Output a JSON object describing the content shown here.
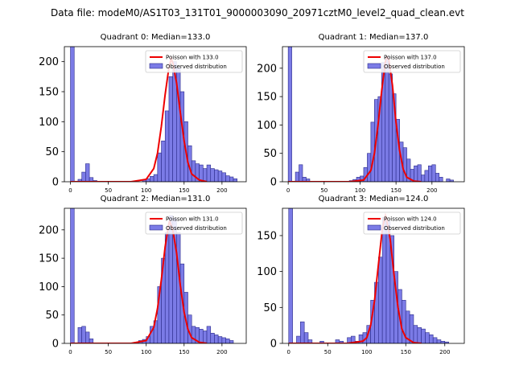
{
  "figure_title": "Data file: modeM0/AS1T03_131T01_9000003090_20971cztM0_level2_quad_clean.evt",
  "colors": {
    "bar_fill": "#7b7be6",
    "bar_edge": "#2b2b8a",
    "poisson_line": "#ee0000",
    "axis": "#000000"
  },
  "chart_data": [
    {
      "type": "bar",
      "title": "Quadrant 0: Median=133.0",
      "median": 133.0,
      "xlim": [
        -8,
        232
      ],
      "ylim": [
        0,
        225
      ],
      "xticks": [
        0,
        50,
        100,
        150,
        200
      ],
      "yticks": [
        0,
        50,
        100,
        150,
        200
      ],
      "xlabel": "",
      "ylabel": "",
      "legend": {
        "placement": "top-right",
        "entries": [
          "Poisson with 133.0",
          "Observed distribution"
        ]
      },
      "bin_width": 5,
      "bins": [
        [
          0,
          225
        ],
        [
          10,
          4
        ],
        [
          15,
          16
        ],
        [
          20,
          30
        ],
        [
          25,
          7
        ],
        [
          30,
          2
        ],
        [
          95,
          3
        ],
        [
          100,
          5
        ],
        [
          105,
          9
        ],
        [
          110,
          12
        ],
        [
          115,
          48
        ],
        [
          120,
          68
        ],
        [
          125,
          118
        ],
        [
          130,
          175
        ],
        [
          135,
          200
        ],
        [
          140,
          190
        ],
        [
          145,
          150
        ],
        [
          150,
          100
        ],
        [
          155,
          60
        ],
        [
          160,
          35
        ],
        [
          165,
          30
        ],
        [
          170,
          28
        ],
        [
          175,
          22
        ],
        [
          180,
          28
        ],
        [
          185,
          22
        ],
        [
          190,
          20
        ],
        [
          195,
          18
        ],
        [
          200,
          15
        ],
        [
          205,
          10
        ],
        [
          210,
          8
        ],
        [
          215,
          5
        ]
      ],
      "poisson_curve": [
        [
          0,
          0
        ],
        [
          80,
          0
        ],
        [
          100,
          4
        ],
        [
          110,
          22
        ],
        [
          115,
          48
        ],
        [
          120,
          92
        ],
        [
          125,
          145
        ],
        [
          130,
          190
        ],
        [
          133,
          205
        ],
        [
          135,
          198
        ],
        [
          140,
          165
        ],
        [
          145,
          115
        ],
        [
          150,
          68
        ],
        [
          155,
          32
        ],
        [
          160,
          13
        ],
        [
          170,
          3
        ],
        [
          180,
          0
        ]
      ]
    },
    {
      "type": "bar",
      "title": "Quadrant 1: Median=137.0",
      "median": 137.0,
      "xlim": [
        -8,
        245
      ],
      "ylim": [
        0,
        238
      ],
      "xticks": [
        0,
        50,
        100,
        150,
        200
      ],
      "yticks": [
        0,
        50,
        100,
        150,
        200
      ],
      "xlabel": "",
      "ylabel": "",
      "legend": {
        "placement": "top-right",
        "entries": [
          "Poisson with 137.0",
          "Observed distribution"
        ]
      },
      "bin_width": 5,
      "bins": [
        [
          0,
          238
        ],
        [
          10,
          17
        ],
        [
          15,
          30
        ],
        [
          20,
          8
        ],
        [
          25,
          5
        ],
        [
          85,
          2
        ],
        [
          90,
          4
        ],
        [
          95,
          8
        ],
        [
          100,
          10
        ],
        [
          105,
          25
        ],
        [
          110,
          50
        ],
        [
          115,
          105
        ],
        [
          120,
          145
        ],
        [
          125,
          150
        ],
        [
          130,
          210
        ],
        [
          135,
          220
        ],
        [
          140,
          190
        ],
        [
          145,
          155
        ],
        [
          150,
          110
        ],
        [
          155,
          70
        ],
        [
          160,
          60
        ],
        [
          165,
          40
        ],
        [
          170,
          22
        ],
        [
          175,
          28
        ],
        [
          180,
          30
        ],
        [
          185,
          12
        ],
        [
          190,
          20
        ],
        [
          195,
          28
        ],
        [
          200,
          30
        ],
        [
          205,
          15
        ],
        [
          210,
          8
        ],
        [
          220,
          5
        ],
        [
          225,
          3
        ]
      ],
      "poisson_curve": [
        [
          0,
          0
        ],
        [
          85,
          0
        ],
        [
          105,
          3
        ],
        [
          115,
          20
        ],
        [
          120,
          50
        ],
        [
          125,
          100
        ],
        [
          130,
          160
        ],
        [
          135,
          210
        ],
        [
          137,
          220
        ],
        [
          140,
          215
        ],
        [
          145,
          170
        ],
        [
          150,
          105
        ],
        [
          155,
          55
        ],
        [
          160,
          22
        ],
        [
          165,
          8
        ],
        [
          175,
          1
        ],
        [
          185,
          0
        ]
      ]
    },
    {
      "type": "bar",
      "title": "Quadrant 2: Median=131.0",
      "median": 131.0,
      "xlim": [
        -8,
        232
      ],
      "ylim": [
        0,
        238
      ],
      "xticks": [
        0,
        50,
        100,
        150,
        200
      ],
      "yticks": [
        0,
        50,
        100,
        150,
        200
      ],
      "xlabel": "",
      "ylabel": "",
      "legend": {
        "placement": "top-right",
        "entries": [
          "Poisson with 131.0",
          "Observed distribution"
        ]
      },
      "bin_width": 5,
      "bins": [
        [
          0,
          238
        ],
        [
          10,
          28
        ],
        [
          15,
          30
        ],
        [
          20,
          20
        ],
        [
          25,
          8
        ],
        [
          85,
          2
        ],
        [
          90,
          5
        ],
        [
          95,
          7
        ],
        [
          100,
          12
        ],
        [
          105,
          30
        ],
        [
          110,
          40
        ],
        [
          115,
          100
        ],
        [
          120,
          150
        ],
        [
          125,
          195
        ],
        [
          130,
          225
        ],
        [
          135,
          220
        ],
        [
          140,
          195
        ],
        [
          145,
          140
        ],
        [
          150,
          90
        ],
        [
          155,
          50
        ],
        [
          160,
          30
        ],
        [
          165,
          28
        ],
        [
          170,
          25
        ],
        [
          175,
          22
        ],
        [
          180,
          30
        ],
        [
          185,
          18
        ],
        [
          190,
          15
        ],
        [
          195,
          12
        ],
        [
          200,
          10
        ],
        [
          205,
          8
        ],
        [
          210,
          5
        ]
      ],
      "poisson_curve": [
        [
          0,
          0
        ],
        [
          80,
          0
        ],
        [
          100,
          5
        ],
        [
          110,
          28
        ],
        [
          115,
          62
        ],
        [
          120,
          112
        ],
        [
          125,
          170
        ],
        [
          130,
          212
        ],
        [
          131,
          215
        ],
        [
          135,
          200
        ],
        [
          140,
          160
        ],
        [
          145,
          102
        ],
        [
          150,
          55
        ],
        [
          155,
          25
        ],
        [
          160,
          10
        ],
        [
          170,
          2
        ],
        [
          180,
          0
        ]
      ]
    },
    {
      "type": "bar",
      "title": "Quadrant 3: Median=124.0",
      "median": 124.0,
      "xlim": [
        -8,
        225
      ],
      "ylim": [
        0,
        188
      ],
      "xticks": [
        0,
        50,
        100,
        150,
        200
      ],
      "yticks": [
        0,
        50,
        100,
        150
      ],
      "xlabel": "",
      "ylabel": "",
      "legend": {
        "placement": "top-right",
        "entries": [
          "Poisson with 124.0",
          "Observed distribution"
        ]
      },
      "bin_width": 5,
      "bins": [
        [
          0,
          188
        ],
        [
          10,
          10
        ],
        [
          15,
          30
        ],
        [
          20,
          15
        ],
        [
          25,
          5
        ],
        [
          40,
          3
        ],
        [
          60,
          5
        ],
        [
          65,
          3
        ],
        [
          75,
          8
        ],
        [
          80,
          10
        ],
        [
          85,
          3
        ],
        [
          90,
          12
        ],
        [
          95,
          15
        ],
        [
          100,
          25
        ],
        [
          105,
          60
        ],
        [
          110,
          85
        ],
        [
          115,
          120
        ],
        [
          120,
          175
        ],
        [
          125,
          170
        ],
        [
          130,
          150
        ],
        [
          135,
          100
        ],
        [
          140,
          75
        ],
        [
          145,
          60
        ],
        [
          150,
          45
        ],
        [
          155,
          40
        ],
        [
          160,
          25
        ],
        [
          165,
          22
        ],
        [
          170,
          20
        ],
        [
          175,
          15
        ],
        [
          180,
          12
        ],
        [
          185,
          8
        ],
        [
          190,
          5
        ],
        [
          195,
          3
        ],
        [
          200,
          2
        ]
      ],
      "poisson_curve": [
        [
          0,
          0
        ],
        [
          75,
          0
        ],
        [
          95,
          3
        ],
        [
          100,
          8
        ],
        [
          105,
          25
        ],
        [
          110,
          60
        ],
        [
          115,
          110
        ],
        [
          120,
          160
        ],
        [
          124,
          178
        ],
        [
          125,
          175
        ],
        [
          130,
          145
        ],
        [
          135,
          95
        ],
        [
          140,
          50
        ],
        [
          145,
          20
        ],
        [
          150,
          8
        ],
        [
          160,
          1
        ],
        [
          170,
          0
        ]
      ]
    }
  ]
}
